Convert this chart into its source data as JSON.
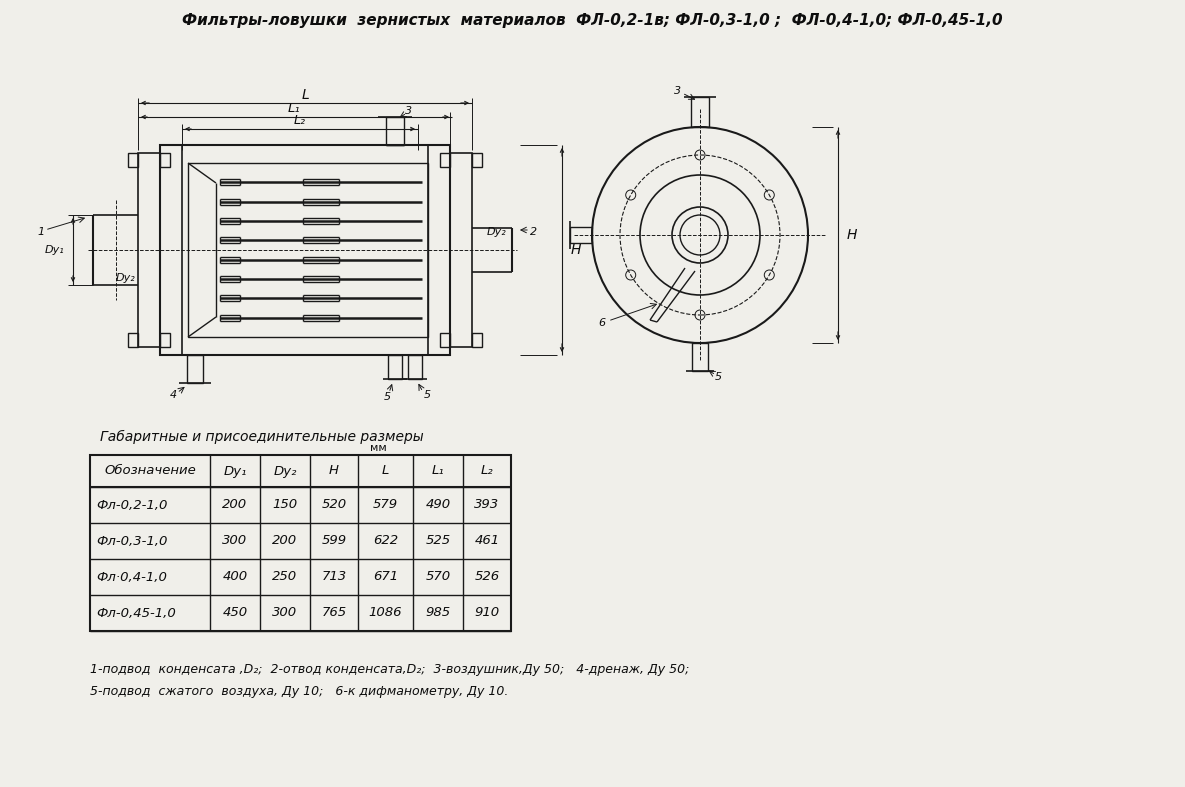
{
  "title": "Фильтры-ловушки  зернистых  материалов  ФЛ-0,2-1в; ФЛ-0,3-1,0 ;  ФЛ-0,4-1,0; ФЛ-0,45-1,0",
  "col_headers": [
    "Обозначение",
    "Dy₁",
    "Dy₂",
    "H",
    "L",
    "L₁",
    "L₂"
  ],
  "rows": [
    [
      "Фл-0,2-1,0",
      "200",
      "150",
      "520",
      "579",
      "490",
      "393"
    ],
    [
      "Фл-0,3-1,0",
      "300",
      "200",
      "599",
      "622",
      "525",
      "461"
    ],
    [
      "Фл·0,4-1,0",
      "400",
      "250",
      "713",
      "671",
      "570",
      "526"
    ],
    [
      "Фл-0,45-1,0",
      "450",
      "300",
      "765",
      "1086",
      "985",
      "910"
    ]
  ],
  "footnote_line1": "1-подвод  конденсата ,D₂;  2-отвод конденсата,D₂;  3-воздушник,Ду 50;   4-дренаж, Ду 50;",
  "footnote_line2": "5-подвод  сжатого  воздуха, Ду 10;   6-к дифманометру, Ду 10.",
  "bg_color": "#f0efea",
  "line_color": "#1a1a1a",
  "text_color": "#0d0d0d"
}
